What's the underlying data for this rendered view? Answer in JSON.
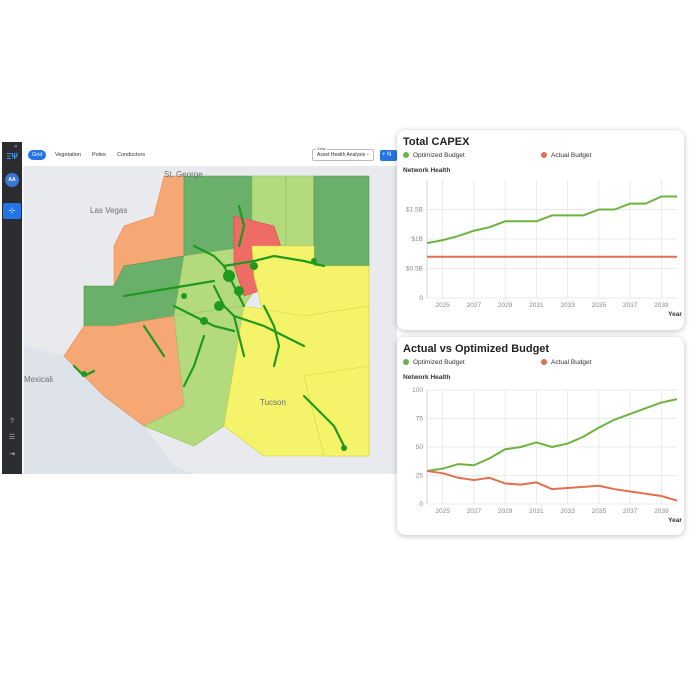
{
  "sidebar": {
    "logo": "ΞΨ",
    "collapse": "»",
    "avatar": "AA",
    "active_icon": "⊹",
    "bottom_icons": [
      "?",
      "☰",
      "⇥"
    ]
  },
  "toolbar": {
    "tabs": [
      {
        "label": "Grid",
        "active": true
      },
      {
        "label": "Vegetation",
        "active": false
      },
      {
        "label": "Poles",
        "active": false
      },
      {
        "label": "Conductors",
        "active": false
      }
    ],
    "view": {
      "label": "View",
      "value": "Asset Health Analysis",
      "caret": "⌄"
    },
    "add_button": "+  N"
  },
  "map": {
    "cities": [
      {
        "name": "St. George"
      },
      {
        "name": "Las Vegas"
      },
      {
        "name": "Mexicali"
      },
      {
        "name": "Tucson"
      }
    ],
    "colors": {
      "dark_green": "#6ab06a",
      "light_green": "#b3db7e",
      "yellow": "#f5f36a",
      "orange": "#f5a774",
      "red": "#ee6b66",
      "network": "#1f9a1f"
    }
  },
  "capex_card": {
    "title": "Total CAPEX",
    "legend": [
      {
        "name": "Optimized Budget",
        "color": "#6db33f"
      },
      {
        "name": "Actual Budget",
        "color": "#e0704f"
      }
    ],
    "subtitle": "Network Health"
  },
  "budget_card": {
    "title": "Actual vs Optimized Budget",
    "legend": [
      {
        "name": "Optimized Budget",
        "color": "#6db33f"
      },
      {
        "name": "Actual Budget",
        "color": "#e0704f"
      }
    ],
    "subtitle": "Network Health"
  },
  "chart_data": [
    {
      "type": "line",
      "title": "Total CAPEX",
      "subtitle": "Network Health",
      "xlabel": "Year",
      "x": [
        2024,
        2025,
        2026,
        2027,
        2028,
        2029,
        2030,
        2031,
        2032,
        2033,
        2034,
        2035,
        2036,
        2037,
        2038,
        2039,
        2040
      ],
      "xticks": [
        "2025",
        "2027",
        "2029",
        "2031",
        "2033",
        "2035",
        "2037",
        "2039"
      ],
      "ytick_labels": [
        "0",
        "$0.5B",
        "$1B",
        "$1.5B"
      ],
      "ytick_values": [
        0,
        0.5,
        1.0,
        1.5
      ],
      "ylim": [
        0,
        2.0
      ],
      "xlim": [
        2024,
        2040
      ],
      "series": [
        {
          "name": "Optimized Budget",
          "color": "#6db33f",
          "values": [
            0.93,
            0.98,
            1.05,
            1.14,
            1.2,
            1.3,
            1.3,
            1.3,
            1.4,
            1.4,
            1.4,
            1.5,
            1.5,
            1.6,
            1.6,
            1.72,
            1.72
          ]
        },
        {
          "name": "Actual Budget",
          "color": "#e0704f",
          "values": [
            0.7,
            0.7,
            0.7,
            0.7,
            0.7,
            0.7,
            0.7,
            0.7,
            0.7,
            0.7,
            0.7,
            0.7,
            0.7,
            0.7,
            0.7,
            0.7,
            0.7
          ]
        }
      ],
      "grid": true,
      "legend": "top-left"
    },
    {
      "type": "line",
      "title": "Actual vs Optimized Budget",
      "subtitle": "Network Health",
      "xlabel": "Year",
      "x": [
        2024,
        2025,
        2026,
        2027,
        2028,
        2029,
        2030,
        2031,
        2032,
        2033,
        2034,
        2035,
        2036,
        2037,
        2038,
        2039,
        2040
      ],
      "xticks": [
        "2025",
        "2027",
        "2029",
        "2031",
        "2033",
        "2035",
        "2037",
        "2039"
      ],
      "ytick_labels": [
        "0",
        "25",
        "50",
        "75",
        "100"
      ],
      "ytick_values": [
        0,
        25,
        50,
        75,
        100
      ],
      "ylim": [
        0,
        100
      ],
      "xlim": [
        2024,
        2040
      ],
      "series": [
        {
          "name": "Optimized Budget",
          "color": "#6db33f",
          "values": [
            29,
            31,
            35,
            34,
            40,
            48,
            50,
            54,
            50,
            53,
            59,
            67,
            74,
            79,
            84,
            89,
            92
          ]
        },
        {
          "name": "Actual Budget",
          "color": "#e0704f",
          "values": [
            29,
            27,
            23,
            21,
            23,
            18,
            17,
            19,
            13,
            14,
            15,
            16,
            13,
            11,
            9,
            7,
            3
          ]
        }
      ],
      "grid": true,
      "legend": "top-left"
    }
  ]
}
